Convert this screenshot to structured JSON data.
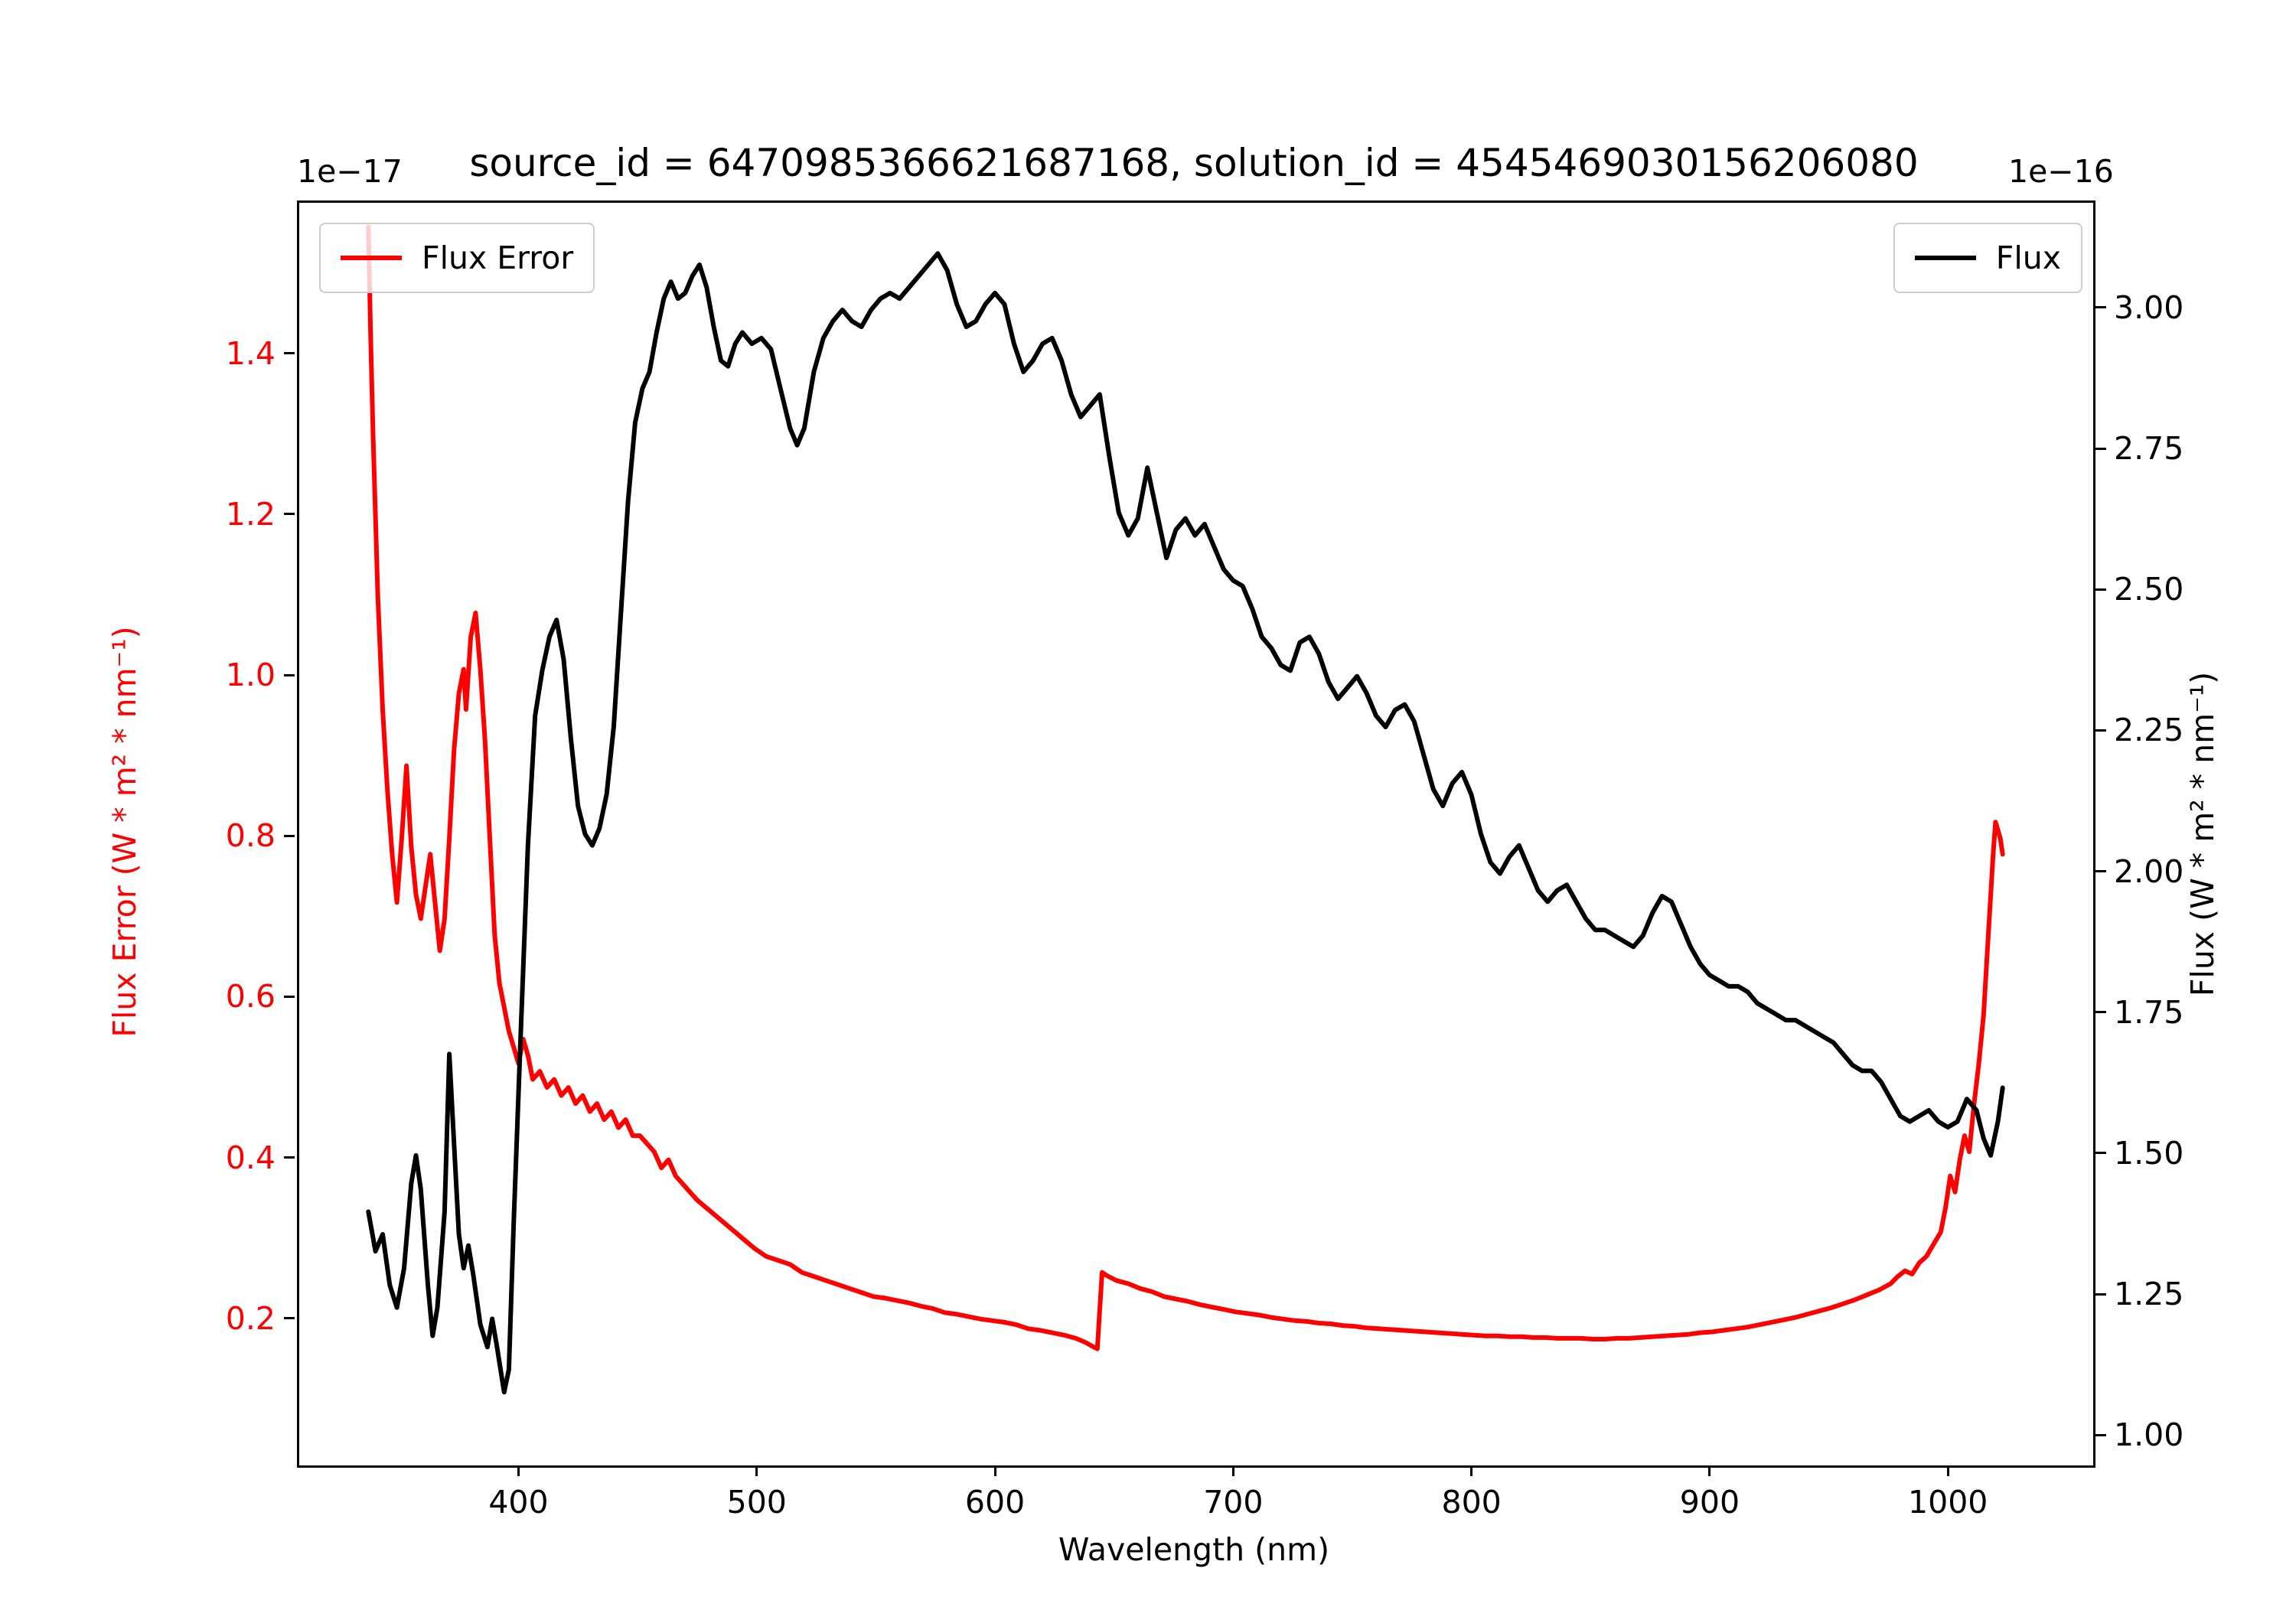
{
  "title": "source_id = 6470985366621687168, solution_id = 4545469030156206080",
  "axes": {
    "x": {
      "label": "Wavelength (nm)",
      "ticks": [
        "400",
        "500",
        "600",
        "700",
        "800",
        "900",
        "1000"
      ],
      "lim": [
        307,
        1060
      ]
    },
    "left": {
      "label": "Flux Error (W * m² * nm⁻¹)",
      "offset_text": "1e−17",
      "ticks": [
        "0.2",
        "0.4",
        "0.6",
        "0.8",
        "1.0",
        "1.2",
        "1.4"
      ],
      "lim": [
        0.02,
        1.59
      ],
      "color": "#ff0000"
    },
    "right": {
      "label": "Flux (W * m² * nm⁻¹)",
      "offset_text": "1e−16",
      "ticks": [
        "1.00",
        "1.25",
        "1.50",
        "1.75",
        "2.00",
        "2.25",
        "2.50",
        "2.75",
        "3.00"
      ],
      "lim": [
        0.95,
        3.19
      ],
      "color": "#000000"
    }
  },
  "legend_left": {
    "label": "Flux Error",
    "color": "#ff0000"
  },
  "legend_right": {
    "label": "Flux",
    "color": "#000000"
  },
  "chart_data": {
    "type": "line",
    "title": "source_id = 6470985366621687168, solution_id = 4545469030156206080",
    "xlabel": "Wavelength (nm)",
    "ylabel_left": "Flux Error (W * m² * nm⁻¹) ×1e−17",
    "ylabel_right": "Flux (W * m² * nm⁻¹) ×1e−16",
    "xlim": [
      307,
      1060
    ],
    "ylim_left": [
      0.02,
      1.59
    ],
    "ylim_right": [
      0.95,
      3.19
    ],
    "grid": false,
    "legend_positions": [
      "upper left",
      "upper right"
    ],
    "series": [
      {
        "name": "Flux Error",
        "axis": "left",
        "color": "#ff0000",
        "unit_scale": "1e-17",
        "x": [
          336,
          337,
          338,
          340,
          342,
          344,
          346,
          348,
          350,
          352,
          354,
          356,
          358,
          360,
          362,
          364,
          366,
          368,
          370,
          372,
          374,
          376,
          377,
          379,
          381,
          383,
          385,
          387,
          389,
          391,
          393,
          395,
          397,
          399,
          401,
          403,
          405,
          408,
          411,
          414,
          417,
          420,
          423,
          426,
          429,
          432,
          435,
          438,
          441,
          444,
          447,
          450,
          453,
          456,
          459,
          462,
          465,
          468,
          471,
          474,
          478,
          482,
          486,
          490,
          494,
          498,
          503,
          508,
          513,
          518,
          523,
          528,
          533,
          538,
          543,
          548,
          553,
          558,
          563,
          568,
          573,
          578,
          583,
          588,
          593,
          598,
          603,
          608,
          613,
          618,
          623,
          628,
          633,
          637,
          640,
          642,
          644,
          646,
          650,
          655,
          660,
          665,
          670,
          675,
          680,
          685,
          690,
          695,
          700,
          705,
          710,
          715,
          720,
          725,
          730,
          735,
          740,
          745,
          750,
          755,
          760,
          765,
          770,
          775,
          780,
          785,
          790,
          795,
          800,
          805,
          810,
          815,
          820,
          825,
          830,
          835,
          840,
          845,
          850,
          855,
          860,
          865,
          870,
          875,
          880,
          885,
          890,
          895,
          900,
          905,
          910,
          915,
          920,
          925,
          930,
          935,
          940,
          945,
          950,
          955,
          960,
          965,
          970,
          975,
          978,
          981,
          984,
          987,
          990,
          993,
          996,
          998,
          1000,
          1002,
          1004,
          1006,
          1008,
          1010,
          1012,
          1014,
          1016,
          1018,
          1019,
          1021,
          1022
        ],
        "y": [
          1.56,
          1.42,
          1.3,
          1.1,
          0.96,
          0.86,
          0.78,
          0.72,
          0.8,
          0.89,
          0.79,
          0.73,
          0.7,
          0.74,
          0.78,
          0.72,
          0.66,
          0.7,
          0.8,
          0.91,
          0.98,
          1.01,
          0.96,
          1.05,
          1.08,
          1.01,
          0.92,
          0.8,
          0.68,
          0.62,
          0.59,
          0.56,
          0.54,
          0.52,
          0.55,
          0.53,
          0.5,
          0.51,
          0.49,
          0.5,
          0.48,
          0.49,
          0.47,
          0.48,
          0.46,
          0.47,
          0.45,
          0.46,
          0.44,
          0.45,
          0.43,
          0.43,
          0.42,
          0.41,
          0.39,
          0.4,
          0.38,
          0.37,
          0.36,
          0.35,
          0.34,
          0.33,
          0.32,
          0.31,
          0.3,
          0.29,
          0.28,
          0.275,
          0.27,
          0.26,
          0.255,
          0.25,
          0.245,
          0.24,
          0.235,
          0.23,
          0.228,
          0.225,
          0.222,
          0.218,
          0.215,
          0.21,
          0.208,
          0.205,
          0.202,
          0.2,
          0.198,
          0.195,
          0.19,
          0.188,
          0.185,
          0.182,
          0.178,
          0.173,
          0.168,
          0.165,
          0.26,
          0.256,
          0.25,
          0.246,
          0.24,
          0.236,
          0.23,
          0.227,
          0.224,
          0.22,
          0.217,
          0.214,
          0.211,
          0.209,
          0.207,
          0.204,
          0.202,
          0.2,
          0.199,
          0.197,
          0.196,
          0.194,
          0.193,
          0.191,
          0.19,
          0.189,
          0.188,
          0.187,
          0.186,
          0.185,
          0.184,
          0.183,
          0.182,
          0.181,
          0.181,
          0.18,
          0.18,
          0.179,
          0.179,
          0.178,
          0.178,
          0.178,
          0.177,
          0.177,
          0.178,
          0.178,
          0.179,
          0.18,
          0.181,
          0.182,
          0.183,
          0.185,
          0.186,
          0.188,
          0.19,
          0.192,
          0.195,
          0.198,
          0.201,
          0.204,
          0.208,
          0.212,
          0.216,
          0.221,
          0.226,
          0.232,
          0.238,
          0.246,
          0.255,
          0.262,
          0.258,
          0.272,
          0.28,
          0.295,
          0.31,
          0.34,
          0.38,
          0.36,
          0.4,
          0.43,
          0.41,
          0.47,
          0.52,
          0.58,
          0.68,
          0.78,
          0.82,
          0.8,
          0.78
        ]
      },
      {
        "name": "Flux",
        "axis": "right",
        "color": "#000000",
        "unit_scale": "1e-16",
        "x": [
          336,
          339,
          342,
          345,
          348,
          351,
          354,
          356,
          358,
          361,
          363,
          365,
          368,
          370,
          372,
          374,
          376,
          378,
          380,
          383,
          386,
          388,
          390,
          393,
          395,
          397,
          400,
          403,
          406,
          409,
          412,
          415,
          418,
          421,
          424,
          427,
          430,
          433,
          436,
          439,
          442,
          445,
          448,
          451,
          454,
          457,
          460,
          463,
          466,
          469,
          472,
          475,
          478,
          481,
          484,
          487,
          490,
          493,
          497,
          501,
          505,
          509,
          513,
          516,
          519,
          523,
          527,
          531,
          535,
          539,
          543,
          547,
          551,
          555,
          559,
          563,
          567,
          571,
          575,
          579,
          583,
          587,
          591,
          595,
          599,
          603,
          607,
          611,
          615,
          619,
          623,
          627,
          631,
          635,
          639,
          643,
          647,
          651,
          655,
          659,
          663,
          667,
          671,
          675,
          679,
          683,
          687,
          691,
          695,
          699,
          703,
          707,
          711,
          715,
          719,
          723,
          727,
          731,
          735,
          739,
          743,
          747,
          751,
          755,
          759,
          763,
          767,
          771,
          775,
          779,
          783,
          787,
          791,
          795,
          799,
          803,
          807,
          811,
          815,
          819,
          823,
          827,
          831,
          835,
          839,
          843,
          847,
          851,
          855,
          859,
          863,
          867,
          871,
          875,
          879,
          883,
          887,
          891,
          895,
          899,
          903,
          907,
          911,
          915,
          919,
          923,
          927,
          931,
          935,
          939,
          943,
          947,
          951,
          955,
          959,
          963,
          967,
          971,
          975,
          979,
          983,
          987,
          991,
          995,
          999,
          1003,
          1007,
          1011,
          1014,
          1017,
          1020,
          1022
        ],
        "y": [
          1.4,
          1.33,
          1.36,
          1.27,
          1.23,
          1.3,
          1.45,
          1.5,
          1.44,
          1.27,
          1.18,
          1.23,
          1.4,
          1.68,
          1.52,
          1.36,
          1.3,
          1.34,
          1.29,
          1.2,
          1.16,
          1.21,
          1.16,
          1.08,
          1.12,
          1.38,
          1.72,
          2.05,
          2.28,
          2.36,
          2.42,
          2.45,
          2.38,
          2.24,
          2.12,
          2.07,
          2.05,
          2.08,
          2.14,
          2.26,
          2.46,
          2.66,
          2.8,
          2.86,
          2.89,
          2.96,
          3.02,
          3.05,
          3.02,
          3.03,
          3.06,
          3.08,
          3.04,
          2.97,
          2.91,
          2.9,
          2.94,
          2.96,
          2.94,
          2.95,
          2.93,
          2.86,
          2.79,
          2.76,
          2.79,
          2.89,
          2.95,
          2.98,
          3.0,
          2.98,
          2.97,
          3.0,
          3.02,
          3.03,
          3.02,
          3.04,
          3.06,
          3.08,
          3.1,
          3.07,
          3.01,
          2.97,
          2.98,
          3.01,
          3.03,
          3.01,
          2.94,
          2.89,
          2.91,
          2.94,
          2.95,
          2.91,
          2.85,
          2.81,
          2.83,
          2.85,
          2.74,
          2.64,
          2.6,
          2.63,
          2.72,
          2.64,
          2.56,
          2.61,
          2.63,
          2.6,
          2.62,
          2.58,
          2.54,
          2.52,
          2.51,
          2.47,
          2.42,
          2.4,
          2.37,
          2.36,
          2.41,
          2.42,
          2.39,
          2.34,
          2.31,
          2.33,
          2.35,
          2.32,
          2.28,
          2.26,
          2.29,
          2.3,
          2.27,
          2.21,
          2.15,
          2.12,
          2.16,
          2.18,
          2.14,
          2.07,
          2.02,
          2.0,
          2.03,
          2.05,
          2.01,
          1.97,
          1.95,
          1.97,
          1.98,
          1.95,
          1.92,
          1.9,
          1.9,
          1.89,
          1.88,
          1.87,
          1.89,
          1.93,
          1.96,
          1.95,
          1.91,
          1.87,
          1.84,
          1.82,
          1.81,
          1.8,
          1.8,
          1.79,
          1.77,
          1.76,
          1.75,
          1.74,
          1.74,
          1.73,
          1.72,
          1.71,
          1.7,
          1.68,
          1.66,
          1.65,
          1.65,
          1.63,
          1.6,
          1.57,
          1.56,
          1.57,
          1.58,
          1.56,
          1.55,
          1.56,
          1.6,
          1.58,
          1.53,
          1.5,
          1.56,
          1.62
        ]
      }
    ]
  }
}
